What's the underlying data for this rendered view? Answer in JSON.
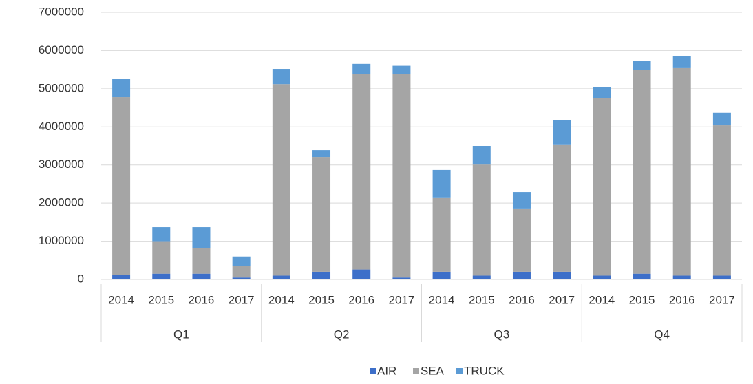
{
  "chart_data": {
    "type": "stacked_bar",
    "categories": [
      "2014",
      "2015",
      "2016",
      "2017",
      "2014",
      "2015",
      "2016",
      "2017",
      "2014",
      "2015",
      "2016",
      "2017",
      "2014",
      "2015",
      "2016",
      "2017"
    ],
    "groups": [
      "Q1",
      "Q2",
      "Q3",
      "Q4"
    ],
    "series": [
      {
        "name": "AIR",
        "color": "#3d6fc9",
        "values": [
          120000,
          150000,
          150000,
          50000,
          100000,
          200000,
          260000,
          50000,
          200000,
          100000,
          200000,
          200000,
          100000,
          150000,
          100000,
          100000
        ]
      },
      {
        "name": "SEA",
        "color": "#a5a5a5",
        "values": [
          4660000,
          850000,
          680000,
          310000,
          5020000,
          3010000,
          5120000,
          5330000,
          1950000,
          2910000,
          1660000,
          3340000,
          4650000,
          5340000,
          5440000,
          3940000
        ]
      },
      {
        "name": "TRUCK",
        "color": "#5b9bd5",
        "values": [
          470000,
          370000,
          540000,
          240000,
          400000,
          180000,
          270000,
          220000,
          720000,
          490000,
          430000,
          630000,
          290000,
          230000,
          310000,
          330000
        ]
      }
    ],
    "ylim": [
      0,
      7000000
    ],
    "yticks": [
      0,
      1000000,
      2000000,
      3000000,
      4000000,
      5000000,
      6000000,
      7000000
    ],
    "grid": true,
    "legend": "bottom"
  }
}
